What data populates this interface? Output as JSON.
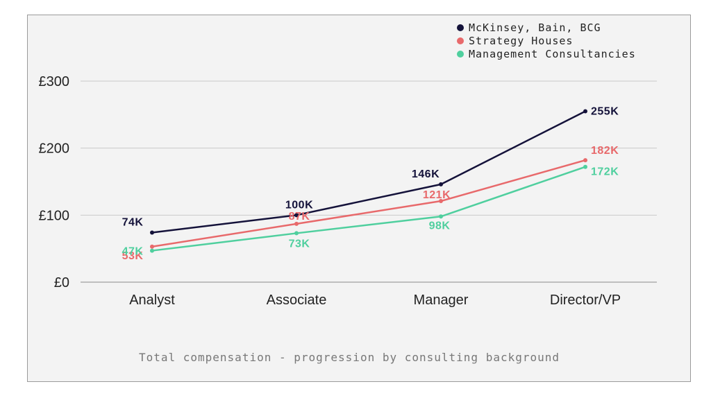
{
  "chart_data": {
    "type": "line",
    "title": "Total compensation - progression by consulting background",
    "categories": [
      "Analyst",
      "Associate",
      "Manager",
      "Director/VP"
    ],
    "ylim": [
      0,
      300
    ],
    "yticks": [
      "£0",
      "£100",
      "£200",
      "£300"
    ],
    "ytick_values": [
      0,
      100,
      200,
      300
    ],
    "grid": true,
    "legend_position": "top-right",
    "series": [
      {
        "name": "McKinsey, Bain, BCG",
        "color": "#14123a",
        "values": [
          74,
          100,
          146,
          255
        ],
        "labels": [
          "74K",
          "100K",
          "146K",
          "255K"
        ]
      },
      {
        "name": "Strategy Houses",
        "color": "#e8696b",
        "values": [
          53,
          87,
          121,
          182
        ],
        "labels": [
          "53K",
          "87K",
          "121K",
          "182K"
        ]
      },
      {
        "name": "Management Consultancies",
        "color": "#4fcf9e",
        "values": [
          47,
          73,
          98,
          172
        ],
        "labels": [
          "47K",
          "73K",
          "98K",
          "172K"
        ]
      }
    ]
  }
}
